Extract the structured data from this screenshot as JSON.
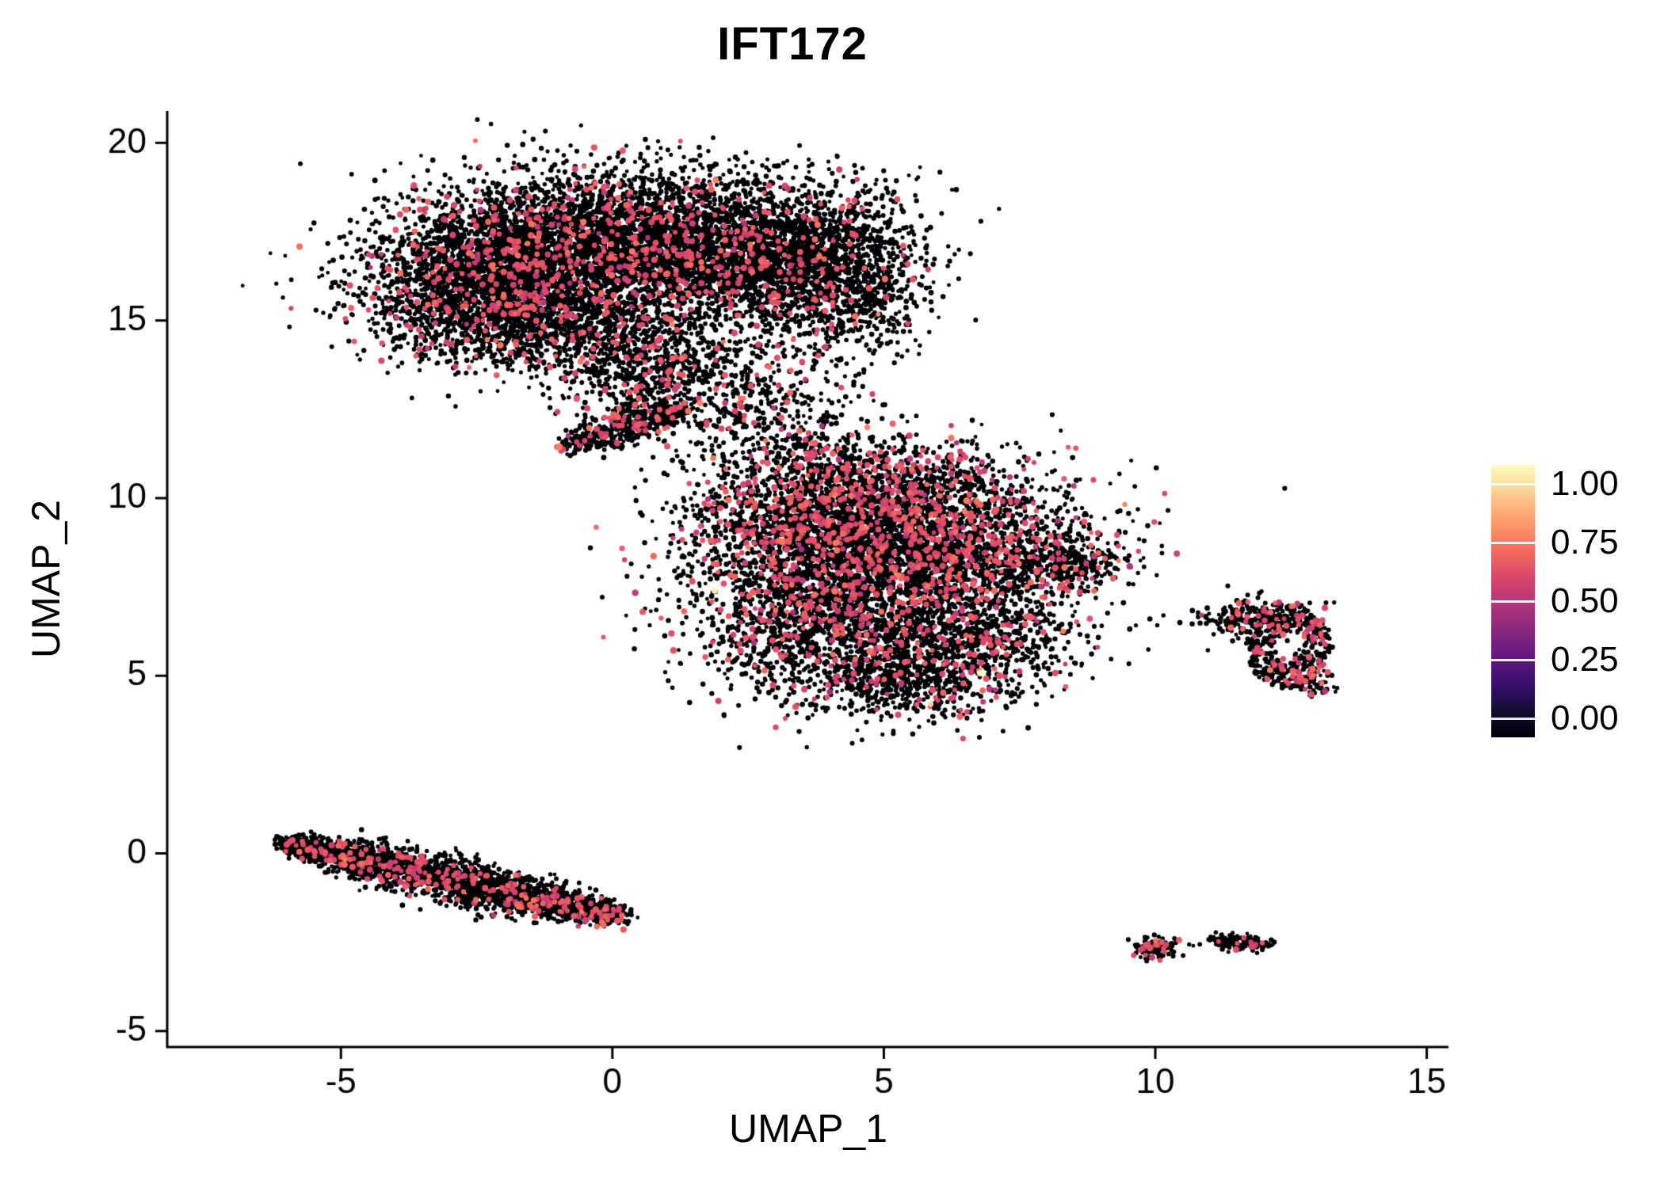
{
  "title": "IFT172",
  "chart_data": {
    "type": "scatter",
    "title": "IFT172",
    "xlabel": "UMAP_1",
    "ylabel": "UMAP_2",
    "xlim": [
      -8.2,
      15.4
    ],
    "ylim": [
      -5.45,
      20.9
    ],
    "x_ticks": [
      -5,
      0,
      5,
      10,
      15
    ],
    "x_tick_labels": [
      "-5",
      "0",
      "5",
      "10",
      "15"
    ],
    "y_ticks": [
      -5,
      0,
      5,
      10,
      15,
      20
    ],
    "y_tick_labels": [
      "-5",
      "0",
      "5",
      "10",
      "15",
      "20"
    ],
    "grid": false,
    "background": "#ffffff",
    "axis_color": "#000000",
    "colorbar": {
      "position": "right",
      "tick_labels": [
        "1.00",
        "0.75",
        "0.50",
        "0.25",
        "0.00"
      ],
      "tick_values": [
        1.0,
        0.75,
        0.5,
        0.25,
        0.0
      ],
      "colormap": "magma",
      "stops": [
        {
          "t": 0.0,
          "color": "#000004"
        },
        {
          "t": 0.1,
          "color": "#140e36"
        },
        {
          "t": 0.2,
          "color": "#3b0f70"
        },
        {
          "t": 0.3,
          "color": "#641a80"
        },
        {
          "t": 0.4,
          "color": "#8c2981"
        },
        {
          "t": 0.5,
          "color": "#b73779"
        },
        {
          "t": 0.6,
          "color": "#de4968"
        },
        {
          "t": 0.7,
          "color": "#f7705c"
        },
        {
          "t": 0.8,
          "color": "#fe9f6d"
        },
        {
          "t": 0.9,
          "color": "#fecf92"
        },
        {
          "t": 1.0,
          "color": "#fcfdbf"
        }
      ]
    },
    "seed": 42,
    "expression_value_mean": 0.6,
    "expression_value_sd": 0.05,
    "clusters": [
      {
        "name": "top-A",
        "type": "gauss",
        "cx": -2.2,
        "cy": 16.3,
        "sx": 1.25,
        "sy": 1.05,
        "n": 2600,
        "expr": 0.1
      },
      {
        "name": "top-B",
        "type": "gauss",
        "cx": 0.0,
        "cy": 17.3,
        "sx": 1.5,
        "sy": 1.0,
        "n": 2600,
        "expr": 0.09
      },
      {
        "name": "top-C",
        "type": "gauss",
        "cx": 2.6,
        "cy": 16.9,
        "sx": 1.3,
        "sy": 1.05,
        "n": 2200,
        "expr": 0.07
      },
      {
        "name": "top-D",
        "type": "gauss",
        "cx": 4.2,
        "cy": 16.2,
        "sx": 0.8,
        "sy": 1.15,
        "n": 900,
        "expr": 0.06
      },
      {
        "name": "top-E",
        "type": "gauss",
        "cx": -1.2,
        "cy": 14.8,
        "sx": 1.2,
        "sy": 0.7,
        "n": 900,
        "expr": 0.09
      },
      {
        "name": "top-neck",
        "type": "gauss",
        "cx": 0.9,
        "cy": 13.6,
        "sx": 0.85,
        "sy": 0.8,
        "n": 700,
        "expr": 0.1
      },
      {
        "name": "top-arm",
        "type": "line",
        "x1": -0.9,
        "y1": 11.45,
        "x2": 1.3,
        "y2": 12.55,
        "width": 0.22,
        "n": 480,
        "expr": 0.12
      },
      {
        "name": "bridge",
        "type": "gauss",
        "cx": 2.9,
        "cy": 12.4,
        "sx": 0.85,
        "sy": 1.0,
        "n": 380,
        "expr": 0.1
      },
      {
        "name": "mid-1",
        "type": "gauss",
        "cx": 3.9,
        "cy": 9.2,
        "sx": 1.3,
        "sy": 1.0,
        "n": 2000,
        "expr": 0.17
      },
      {
        "name": "mid-2",
        "type": "gauss",
        "cx": 6.2,
        "cy": 8.8,
        "sx": 1.4,
        "sy": 1.1,
        "n": 2100,
        "expr": 0.17
      },
      {
        "name": "mid-3",
        "type": "gauss",
        "cx": 4.0,
        "cy": 6.6,
        "sx": 1.3,
        "sy": 1.1,
        "n": 1800,
        "expr": 0.1
      },
      {
        "name": "mid-4",
        "type": "gauss",
        "cx": 6.4,
        "cy": 5.9,
        "sx": 1.05,
        "sy": 0.9,
        "n": 1000,
        "expr": 0.1
      },
      {
        "name": "mid-tip",
        "type": "gauss",
        "cx": 8.35,
        "cy": 8.1,
        "sx": 0.55,
        "sy": 0.33,
        "n": 260,
        "expr": 0.12
      },
      {
        "name": "mid-top",
        "type": "gauss",
        "cx": 4.6,
        "cy": 10.8,
        "sx": 1.35,
        "sy": 0.55,
        "n": 430,
        "expr": 0.16
      },
      {
        "name": "mid-bottom",
        "type": "gauss",
        "cx": 5.2,
        "cy": 4.7,
        "sx": 0.9,
        "sy": 0.5,
        "n": 320,
        "expr": 0.07
      },
      {
        "name": "right-ring",
        "type": "ring",
        "cx": 12.45,
        "cy": 5.85,
        "r0": 0.38,
        "r1": 1.15,
        "rx": 0.66,
        "ry": 1.0,
        "n": 470,
        "expr": 0.15
      },
      {
        "name": "right-top",
        "type": "gauss",
        "cx": 12.0,
        "cy": 6.62,
        "sx": 0.5,
        "sy": 0.28,
        "n": 170,
        "expr": 0.12
      },
      {
        "name": "right-streak",
        "type": "gauss",
        "cx": 11.35,
        "cy": 6.6,
        "sx": 0.3,
        "sy": 0.13,
        "n": 55,
        "expr": 0.05
      },
      {
        "name": "right-tail",
        "type": "gauss",
        "cx": 12.95,
        "cy": 4.8,
        "sx": 0.18,
        "sy": 0.24,
        "n": 55,
        "expr": 0.1
      },
      {
        "name": "left-band",
        "type": "line",
        "x1": -6.05,
        "y1": 0.3,
        "x2": 0.15,
        "y2": -1.8,
        "width": 0.26,
        "n": 2600,
        "expr": 0.09
      },
      {
        "name": "tiny-1",
        "type": "gauss",
        "cx": 10.0,
        "cy": -2.65,
        "sx": 0.22,
        "sy": 0.15,
        "n": 120,
        "expr": 0.14
      },
      {
        "name": "tiny-2",
        "type": "line",
        "x1": 11.1,
        "y1": -2.45,
        "x2": 12.0,
        "y2": -2.55,
        "width": 0.12,
        "n": 150,
        "expr": 0.05
      }
    ],
    "extra_points": [
      {
        "x": 6.8,
        "y": 3.75,
        "v": 0
      },
      {
        "x": 10.7,
        "y": -2.6,
        "v": 0
      },
      {
        "x": 10.82,
        "y": -2.56,
        "v": 0
      },
      {
        "x": 9.0,
        "y": 8.18,
        "v": 0
      },
      {
        "x": 9.9,
        "y": 6.6,
        "v": 0
      },
      {
        "x": 10.15,
        "y": 6.7,
        "v": 0
      }
    ]
  }
}
